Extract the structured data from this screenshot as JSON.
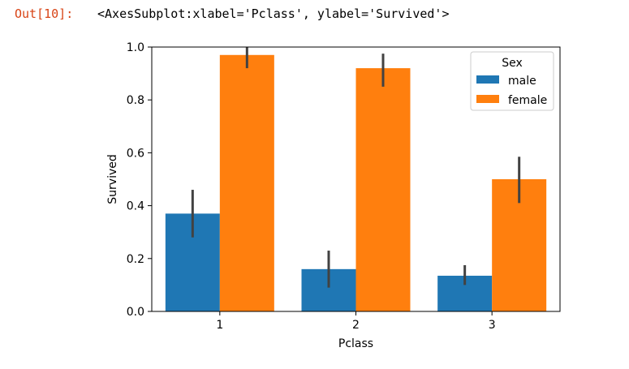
{
  "cell": {
    "prompt": "Out[10]:",
    "repr": "<AxesSubplot:xlabel='Pclass', ylabel='Survived'>"
  },
  "colors": {
    "male": "#1f77b4",
    "female": "#ff7f0e",
    "errorbar": "#424242"
  },
  "chart_data": {
    "type": "bar",
    "categories": [
      "1",
      "2",
      "3"
    ],
    "series": [
      {
        "name": "male",
        "values": [
          0.37,
          0.16,
          0.135
        ],
        "ci": [
          [
            0.28,
            0.46
          ],
          [
            0.09,
            0.23
          ],
          [
            0.1,
            0.175
          ]
        ]
      },
      {
        "name": "female",
        "values": [
          0.97,
          0.92,
          0.5
        ],
        "ci": [
          [
            0.92,
            1.0
          ],
          [
            0.85,
            0.975
          ],
          [
            0.41,
            0.585
          ]
        ]
      }
    ],
    "xlabel": "Pclass",
    "ylabel": "Survived",
    "ylim": [
      0.0,
      1.0
    ],
    "yticks": [
      "0.0",
      "0.2",
      "0.4",
      "0.6",
      "0.8",
      "1.0"
    ],
    "legend": {
      "title": "Sex",
      "position": "top-right"
    },
    "grid": false
  }
}
